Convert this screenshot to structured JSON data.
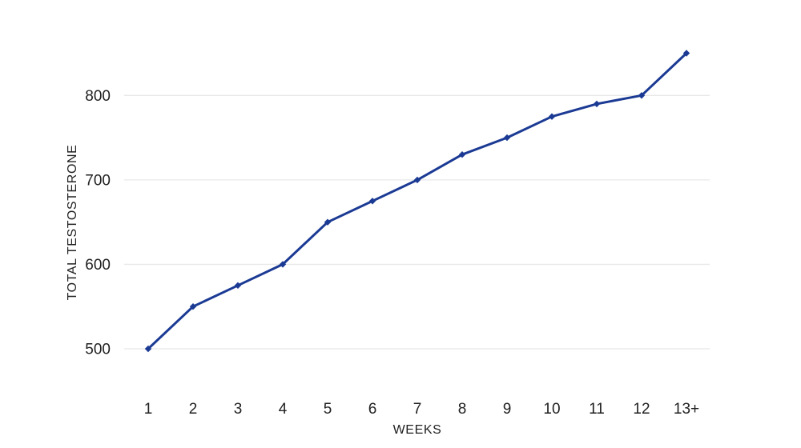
{
  "chart_data": {
    "type": "line",
    "title": "",
    "xlabel": "WEEKS",
    "ylabel": "TOTAL TESTOSTERONE",
    "categories": [
      "1",
      "2",
      "3",
      "4",
      "5",
      "6",
      "7",
      "8",
      "9",
      "10",
      "11",
      "12",
      "13+"
    ],
    "series": [
      {
        "name": "Total Testosterone",
        "values": [
          500,
          550,
          575,
          600,
          650,
          675,
          700,
          730,
          750,
          775,
          790,
          800,
          850
        ]
      }
    ],
    "y_ticks": [
      500,
      600,
      700,
      800
    ],
    "ylim": [
      500,
      850
    ],
    "grid": "horizontal-only",
    "legend": "none",
    "marker": "diamond",
    "colors": {
      "line": "#1b3a94",
      "marker": "#1b3a94",
      "gridline": "#e8e8e8",
      "text": "#212121",
      "background": "#ffffff"
    }
  }
}
